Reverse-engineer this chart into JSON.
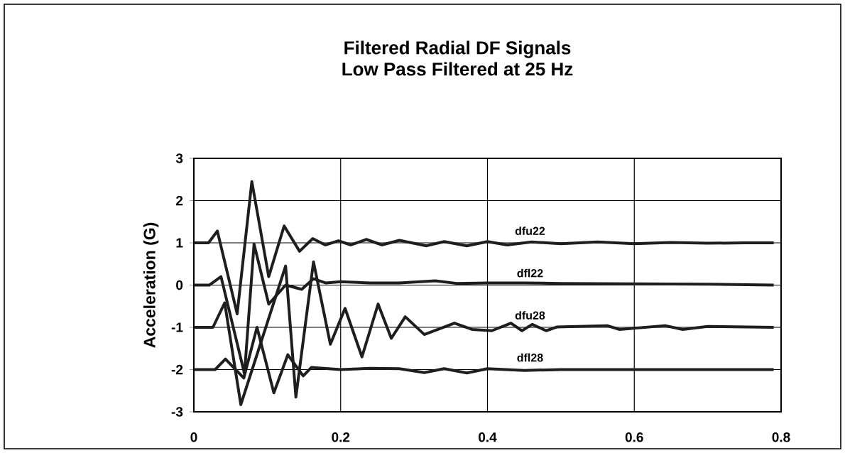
{
  "chart_data": {
    "type": "line",
    "title": "Filtered Radial DF Signals",
    "subtitle": "Low Pass Filtered at 25 Hz",
    "ylabel": "Acceleration (G)",
    "xlim": [
      0,
      0.8
    ],
    "ylim": [
      -3,
      3
    ],
    "xticks": [
      0,
      0.2,
      0.4,
      0.6,
      0.8
    ],
    "yticks": [
      -3,
      -2,
      -1,
      0,
      1,
      2,
      3
    ],
    "grid": true,
    "marker": "none",
    "line_style": "solid",
    "series": [
      {
        "name": "dfu22",
        "color": "#1e1e1e",
        "x": [
          0,
          0.02,
          0.032,
          0.059,
          0.079,
          0.102,
          0.123,
          0.144,
          0.162,
          0.179,
          0.197,
          0.214,
          0.235,
          0.256,
          0.28,
          0.317,
          0.341,
          0.372,
          0.4,
          0.427,
          0.46,
          0.5,
          0.55,
          0.6,
          0.65,
          0.7,
          0.75,
          0.79
        ],
        "values": [
          1,
          1,
          1.28,
          -0.68,
          2.45,
          0.2,
          1.4,
          0.8,
          1.1,
          0.95,
          1.05,
          0.95,
          1.08,
          0.95,
          1.06,
          0.93,
          1.03,
          0.93,
          1.03,
          0.95,
          1.02,
          0.98,
          1.02,
          0.98,
          1.01,
          0.99,
          1.0,
          1.0
        ]
      },
      {
        "name": "dfl22",
        "color": "#1e1e1e",
        "x": [
          0,
          0.021,
          0.037,
          0.069,
          0.082,
          0.102,
          0.125,
          0.147,
          0.163,
          0.18,
          0.2,
          0.24,
          0.28,
          0.329,
          0.358,
          0.4,
          0.45,
          0.5,
          0.6,
          0.7,
          0.79
        ],
        "values": [
          0,
          0,
          0.2,
          -2.1,
          0.97,
          -0.45,
          0.0,
          -0.1,
          0.15,
          0.05,
          0.08,
          0.05,
          0.05,
          0.1,
          0.04,
          0.05,
          0.05,
          0.04,
          0.03,
          0.02,
          0
        ]
      },
      {
        "name": "dfu28",
        "color": "#1e1e1e",
        "x": [
          0,
          0.026,
          0.042,
          0.064,
          0.125,
          0.139,
          0.163,
          0.186,
          0.206,
          0.229,
          0.251,
          0.269,
          0.288,
          0.314,
          0.355,
          0.379,
          0.406,
          0.432,
          0.447,
          0.461,
          0.48,
          0.495,
          0.563,
          0.58,
          0.642,
          0.666,
          0.7,
          0.79
        ],
        "values": [
          -1,
          -1,
          -0.42,
          -2.83,
          0.45,
          -2.65,
          0.55,
          -1.4,
          -0.55,
          -1.7,
          -0.45,
          -1.26,
          -0.75,
          -1.17,
          -0.9,
          -1.05,
          -1.08,
          -0.9,
          -1.08,
          -0.93,
          -1.08,
          -0.99,
          -0.96,
          -1.05,
          -0.96,
          -1.05,
          -0.98,
          -1.0
        ]
      },
      {
        "name": "dfl28",
        "color": "#1e1e1e",
        "x": [
          0,
          0.029,
          0.043,
          0.068,
          0.086,
          0.109,
          0.128,
          0.149,
          0.16,
          0.2,
          0.24,
          0.28,
          0.314,
          0.341,
          0.372,
          0.4,
          0.45,
          0.5,
          0.6,
          0.7,
          0.79
        ],
        "values": [
          -2,
          -2,
          -1.75,
          -2.2,
          -1.0,
          -2.55,
          -1.65,
          -2.15,
          -1.95,
          -2.0,
          -1.97,
          -1.98,
          -2.07,
          -1.98,
          -2.08,
          -1.98,
          -2.02,
          -2.0,
          -2.0,
          -2.0,
          -2.0
        ]
      }
    ]
  }
}
